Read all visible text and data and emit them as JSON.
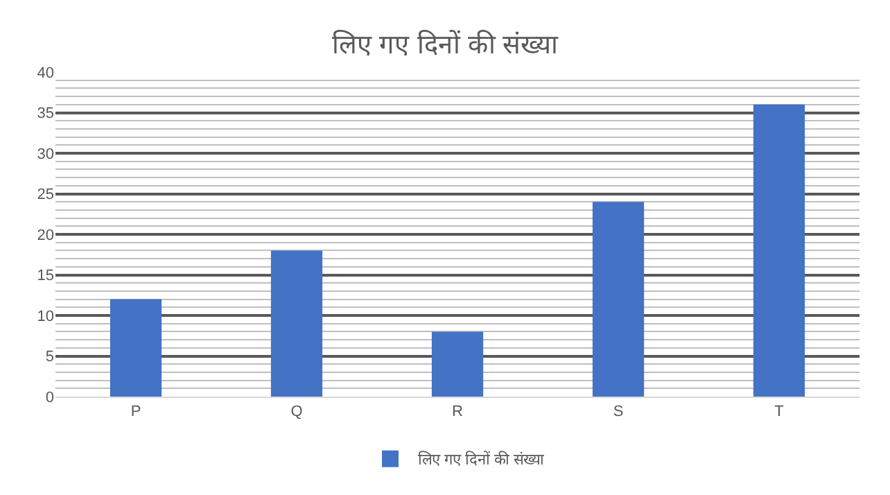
{
  "chart_data": {
    "type": "bar",
    "title": "लिए गए दिनों की संख्या",
    "categories": [
      "P",
      "Q",
      "R",
      "S",
      "T"
    ],
    "series": [
      {
        "name": "लिए गए दिनों की संख्या",
        "color": "#4472c4",
        "values": [
          12,
          18,
          8,
          24,
          36
        ]
      }
    ],
    "ylim": [
      0,
      40
    ],
    "yticks": [
      0,
      5,
      10,
      15,
      20,
      25,
      30,
      35,
      40
    ],
    "grid": true,
    "legend": "bottom"
  }
}
